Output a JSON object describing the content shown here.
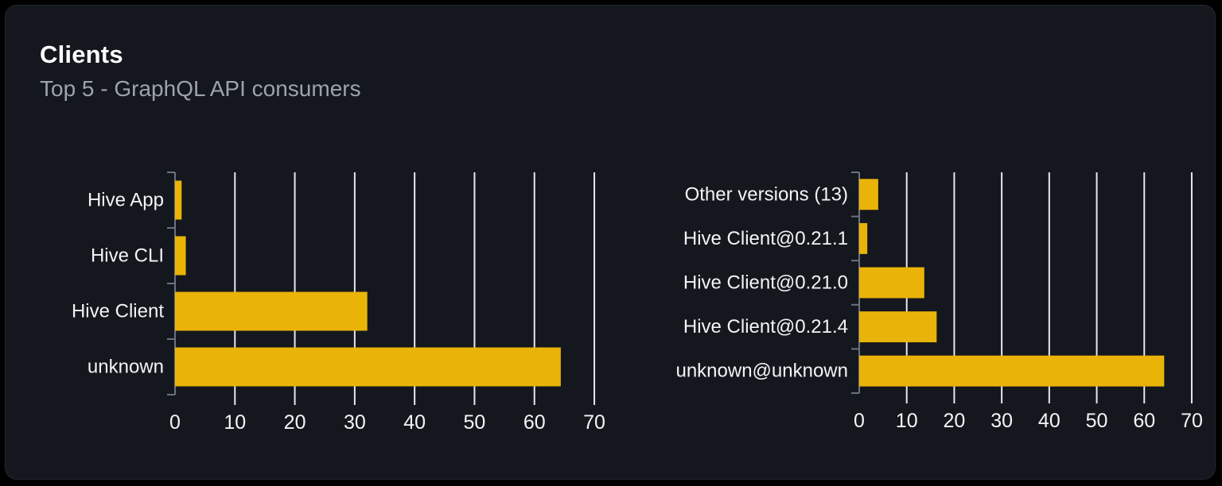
{
  "card": {
    "title": "Clients",
    "subtitle": "Top 5 - GraphQL API consumers"
  },
  "colors": {
    "page_bg": "#000000",
    "card_bg": "#14171d",
    "card_border": "#23262e",
    "title": "#ffffff",
    "subtitle": "#9ca3af",
    "bar": "#eab308",
    "grid": "#e5e7eb",
    "axis": "#6b7280",
    "label": "#f3f4f6",
    "tick_label": "#f3f4f6"
  },
  "chart_data": [
    {
      "type": "bar",
      "orientation": "horizontal",
      "categories": [
        "Hive App",
        "Hive CLI",
        "Hive Client",
        "unknown"
      ],
      "values": [
        1.1,
        1.8,
        32.1,
        64.4
      ],
      "xlim": [
        0,
        70
      ],
      "xticks": [
        0,
        10,
        20,
        30,
        40,
        50,
        60,
        70
      ],
      "grid": true,
      "legend": "none"
    },
    {
      "type": "bar",
      "orientation": "horizontal",
      "categories": [
        "Other versions (13)",
        "Hive Client@0.21.1",
        "Hive Client@0.21.0",
        "Hive Client@0.21.4",
        "unknown@unknown"
      ],
      "values": [
        4.0,
        1.7,
        13.7,
        16.3,
        64.2
      ],
      "xlim": [
        0,
        70
      ],
      "xticks": [
        0,
        10,
        20,
        30,
        40,
        50,
        60,
        70
      ],
      "grid": true,
      "legend": "none"
    }
  ]
}
